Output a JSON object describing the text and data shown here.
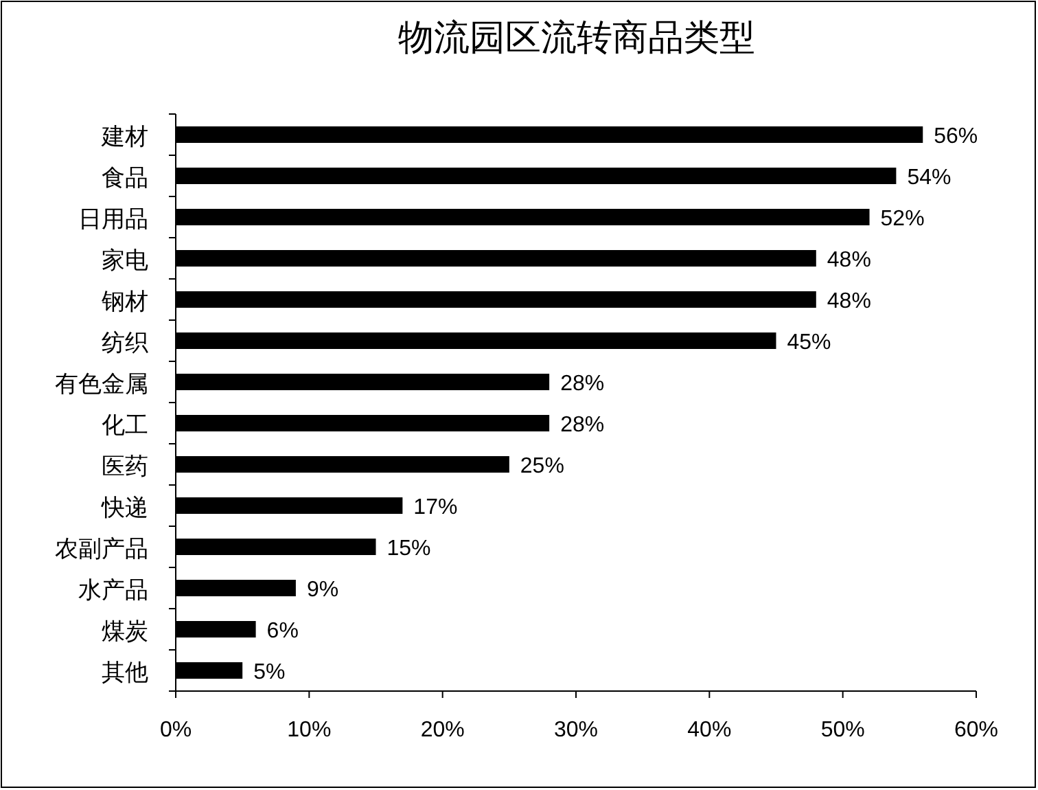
{
  "chart_data": {
    "type": "bar",
    "orientation": "horizontal",
    "title": "物流园区流转商品类型",
    "categories": [
      "建材",
      "食品",
      "日用品",
      "家电",
      "钢材",
      "纺织",
      "有色金属",
      "化工",
      "医药",
      "快递",
      "农副产品",
      "水产品",
      "煤炭",
      "其他"
    ],
    "values": [
      56,
      54,
      52,
      48,
      48,
      45,
      28,
      28,
      25,
      17,
      15,
      9,
      6,
      5
    ],
    "color": "#000000",
    "value_labels": [
      "56%",
      "54%",
      "52%",
      "48%",
      "48%",
      "45%",
      "28%",
      "28%",
      "25%",
      "17%",
      "15%",
      "9%",
      "6%",
      "5%"
    ],
    "xlim": [
      0,
      60
    ],
    "xticks": [
      {
        "value": 0,
        "label": "0%"
      },
      {
        "value": 10,
        "label": "10%"
      },
      {
        "value": 20,
        "label": "20%"
      },
      {
        "value": 30,
        "label": "30%"
      },
      {
        "value": 40,
        "label": "40%"
      },
      {
        "value": 50,
        "label": "50%"
      },
      {
        "value": 60,
        "label": "60%"
      }
    ],
    "grid": false
  }
}
